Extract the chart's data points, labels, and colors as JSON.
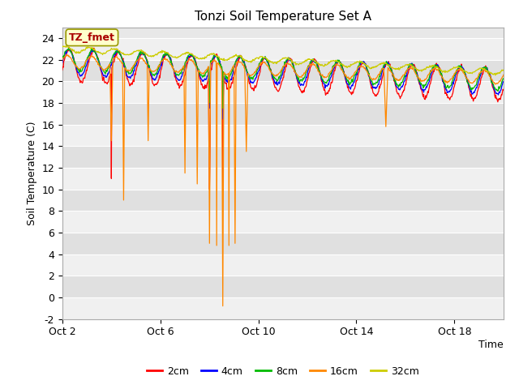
{
  "title": "Tonzi Soil Temperature Set A",
  "xlabel": "Time",
  "ylabel": "Soil Temperature (C)",
  "ylim": [
    -2,
    25
  ],
  "yticks": [
    -2,
    0,
    2,
    4,
    6,
    8,
    10,
    12,
    14,
    16,
    18,
    20,
    22,
    24
  ],
  "xtick_labels": [
    "Oct 2",
    "Oct 6",
    "Oct 10",
    "Oct 14",
    "Oct 18"
  ],
  "xtick_pos": [
    0,
    4,
    8,
    12,
    16
  ],
  "legend_labels": [
    "2cm",
    "4cm",
    "8cm",
    "16cm",
    "32cm"
  ],
  "line_colors": [
    "#ff0000",
    "#0000ff",
    "#00bb00",
    "#ff8800",
    "#cccc00"
  ],
  "annotation_text": "TZ_fmet",
  "annotation_box_color": "#ffffcc",
  "annotation_text_color": "#aa0000",
  "fig_bg_color": "#ffffff",
  "plot_bg_color": "#e8e8e8",
  "grid_color": "#ffffff",
  "n_days": 18,
  "n_per_day": 48
}
